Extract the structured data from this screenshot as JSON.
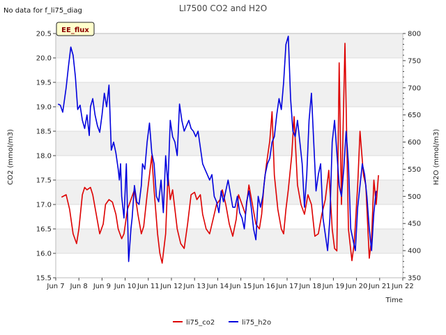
{
  "chart_data": {
    "type": "line",
    "title": "LI7500 CO2 and H2O",
    "xlabel": "Time",
    "ylabel": "CO2 (mmol/m3)",
    "y2label": "H2O (mmol/m3)",
    "annotation": "No data for f_li75_diag",
    "badge": "EE_flux",
    "xlim": [
      7,
      22
    ],
    "ylim": [
      15.5,
      20.5
    ],
    "y2lim": [
      350,
      800
    ],
    "x_ticks": [
      7,
      8,
      9,
      10,
      11,
      12,
      13,
      14,
      15,
      16,
      17,
      18,
      19,
      20,
      21,
      22
    ],
    "x_tick_labels": [
      "Jun 7",
      "Jun 8",
      "Jun 9",
      "Jun 10",
      "Jun 11",
      "Jun 12",
      "Jun 13",
      "Jun 14",
      "Jun 15",
      "Jun 16",
      "Jun 17",
      "Jun 18",
      "Jun 19",
      "Jun 20",
      "Jun 21",
      "Jun 22"
    ],
    "y_ticks": [
      15.5,
      16.0,
      16.5,
      17.0,
      17.5,
      18.0,
      18.5,
      19.0,
      19.5,
      20.0,
      20.5
    ],
    "y_tick_labels": [
      "15.5",
      "16.0",
      "16.5",
      "17.0",
      "17.5",
      "18.0",
      "18.5",
      "19.0",
      "19.5",
      "20.0",
      "20.5"
    ],
    "y2_ticks": [
      350,
      400,
      450,
      500,
      550,
      600,
      650,
      700,
      750,
      800
    ],
    "y2_tick_labels": [
      "350",
      "400",
      "450",
      "500",
      "550",
      "600",
      "650",
      "700",
      "750",
      "800"
    ],
    "grid": "horizontal bands",
    "legend_position": "bottom-center",
    "series": [
      {
        "name": "li75_co2",
        "axis": "left",
        "color": "#dd0000",
        "x": [
          7.25,
          7.45,
          7.6,
          7.75,
          7.9,
          8.0,
          8.15,
          8.25,
          8.35,
          8.5,
          8.6,
          8.75,
          8.9,
          9.05,
          9.15,
          9.3,
          9.45,
          9.6,
          9.7,
          9.85,
          9.95,
          10.1,
          10.25,
          10.4,
          10.55,
          10.7,
          10.8,
          10.95,
          11.05,
          11.15,
          11.25,
          11.4,
          11.5,
          11.6,
          11.75,
          11.85,
          11.95,
          12.05,
          12.15,
          12.25,
          12.4,
          12.55,
          12.7,
          12.85,
          13.0,
          13.1,
          13.25,
          13.35,
          13.5,
          13.65,
          13.8,
          13.95,
          14.1,
          14.2,
          14.35,
          14.5,
          14.65,
          14.8,
          14.9,
          15.05,
          15.2,
          15.35,
          15.5,
          15.65,
          15.8,
          15.9,
          16.0,
          16.1,
          16.25,
          16.35,
          16.45,
          16.6,
          16.75,
          16.85,
          16.95,
          17.05,
          17.2,
          17.3,
          17.45,
          17.6,
          17.75,
          17.9,
          18.05,
          18.2,
          18.35,
          18.5,
          18.65,
          18.8,
          18.9,
          18.95,
          19.05,
          19.15,
          19.25,
          19.35,
          19.5,
          19.65,
          19.8,
          19.9,
          20.05,
          20.15,
          20.3,
          20.4,
          20.55,
          20.65,
          20.75,
          20.85,
          20.95
        ],
        "values": [
          17.15,
          17.2,
          16.9,
          16.4,
          16.2,
          16.5,
          17.2,
          17.35,
          17.3,
          17.35,
          17.2,
          16.8,
          16.4,
          16.6,
          17.0,
          17.1,
          17.05,
          16.8,
          16.5,
          16.3,
          16.4,
          16.9,
          17.1,
          17.3,
          16.8,
          16.4,
          16.55,
          17.2,
          17.6,
          18.0,
          17.3,
          16.4,
          16.0,
          15.8,
          16.4,
          17.6,
          17.1,
          17.3,
          16.9,
          16.5,
          16.2,
          16.1,
          16.6,
          17.2,
          17.25,
          17.1,
          17.2,
          16.8,
          16.5,
          16.4,
          16.7,
          17.0,
          17.1,
          17.3,
          17.0,
          16.6,
          16.35,
          16.7,
          17.2,
          17.0,
          16.8,
          17.4,
          17.0,
          16.6,
          16.5,
          16.8,
          17.4,
          17.8,
          18.3,
          18.9,
          17.6,
          16.9,
          16.5,
          16.4,
          16.9,
          17.3,
          18.0,
          18.8,
          17.4,
          17.0,
          16.8,
          17.2,
          17.0,
          16.35,
          16.4,
          16.8,
          17.1,
          17.7,
          16.9,
          16.5,
          16.1,
          16.05,
          19.9,
          17.0,
          20.3,
          16.5,
          15.85,
          16.2,
          17.4,
          18.5,
          17.6,
          17.4,
          15.9,
          16.3,
          17.5,
          17.0,
          17.6
        ]
      },
      {
        "name": "li75_h2o",
        "axis": "right",
        "color": "#0000dd",
        "x": [
          7.1,
          7.2,
          7.3,
          7.45,
          7.55,
          7.65,
          7.75,
          7.85,
          7.95,
          8.05,
          8.15,
          8.25,
          8.35,
          8.45,
          8.5,
          8.6,
          8.7,
          8.8,
          8.9,
          9.0,
          9.1,
          9.2,
          9.3,
          9.4,
          9.5,
          9.6,
          9.7,
          9.75,
          9.8,
          9.85,
          9.95,
          10.05,
          10.15,
          10.25,
          10.3,
          10.4,
          10.5,
          10.6,
          10.7,
          10.75,
          10.85,
          10.95,
          11.05,
          11.15,
          11.25,
          11.35,
          11.45,
          11.55,
          11.65,
          11.75,
          11.85,
          11.95,
          12.05,
          12.15,
          12.25,
          12.35,
          12.45,
          12.55,
          12.65,
          12.75,
          12.85,
          12.95,
          13.05,
          13.15,
          13.25,
          13.35,
          13.45,
          13.55,
          13.65,
          13.75,
          13.85,
          13.95,
          14.05,
          14.15,
          14.25,
          14.35,
          14.45,
          14.55,
          14.65,
          14.75,
          14.85,
          14.95,
          15.05,
          15.15,
          15.25,
          15.35,
          15.45,
          15.55,
          15.65,
          15.75,
          15.85,
          15.95,
          16.05,
          16.15,
          16.25,
          16.35,
          16.45,
          16.55,
          16.65,
          16.75,
          16.85,
          16.95,
          17.05,
          17.15,
          17.25,
          17.35,
          17.45,
          17.55,
          17.65,
          17.75,
          17.85,
          17.95,
          18.05,
          18.15,
          18.25,
          18.35,
          18.45,
          18.55,
          18.65,
          18.75,
          18.85,
          18.95,
          19.05,
          19.15,
          19.25,
          19.35,
          19.45,
          19.55,
          19.65,
          19.75,
          19.85,
          19.95,
          20.05,
          20.15,
          20.25,
          20.35,
          20.45,
          20.55,
          20.65,
          20.75,
          20.85
        ],
        "values": [
          670,
          668,
          655,
          700,
          740,
          775,
          760,
          720,
          660,
          668,
          640,
          625,
          650,
          612,
          665,
          680,
          650,
          630,
          618,
          650,
          690,
          665,
          705,
          585,
          600,
          580,
          550,
          530,
          560,
          500,
          460,
          560,
          380,
          440,
          460,
          520,
          490,
          485,
          520,
          560,
          550,
          600,
          635,
          580,
          560,
          500,
          490,
          530,
          470,
          575,
          520,
          640,
          610,
          600,
          575,
          670,
          640,
          620,
          630,
          640,
          625,
          620,
          610,
          620,
          590,
          560,
          550,
          540,
          530,
          540,
          500,
          490,
          470,
          510,
          490,
          510,
          530,
          505,
          480,
          480,
          500,
          470,
          460,
          440,
          490,
          510,
          480,
          440,
          420,
          500,
          480,
          500,
          540,
          560,
          570,
          600,
          610,
          650,
          680,
          660,
          710,
          780,
          795,
          680,
          620,
          610,
          640,
          600,
          560,
          480,
          540,
          640,
          690,
          600,
          510,
          540,
          560,
          460,
          430,
          400,
          460,
          600,
          640,
          580,
          520,
          500,
          550,
          620,
          560,
          440,
          420,
          400,
          480,
          520,
          560,
          540,
          500,
          440,
          400,
          470,
          510
        ]
      }
    ]
  }
}
